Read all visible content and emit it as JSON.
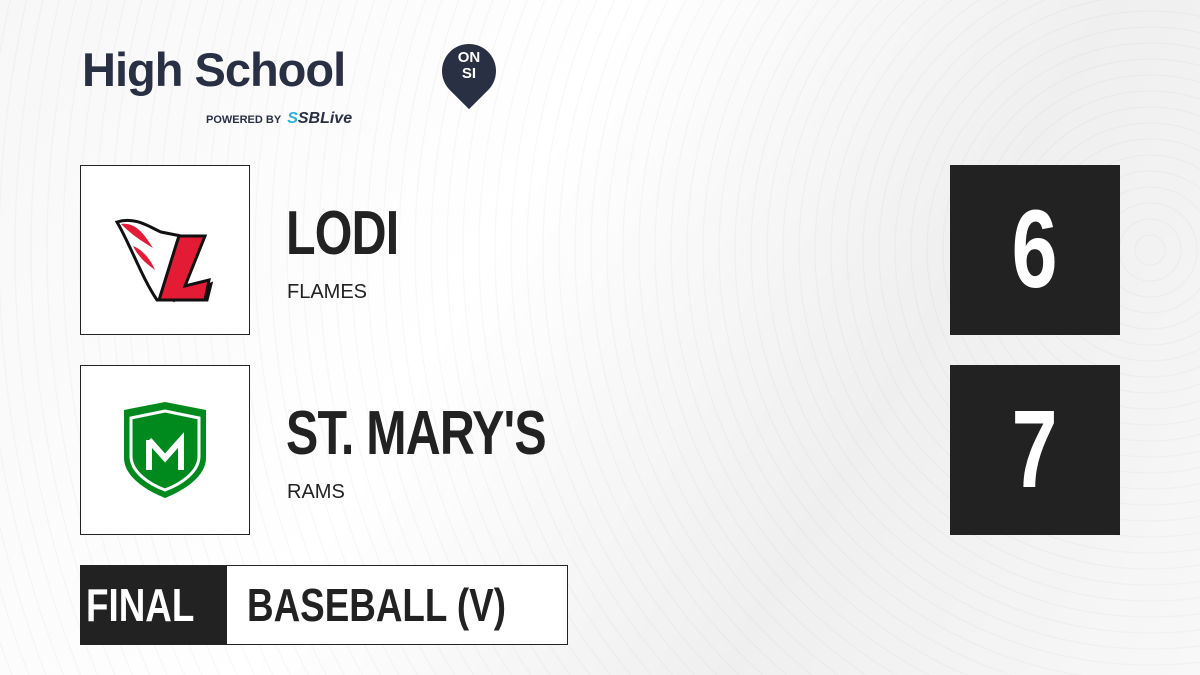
{
  "brand": {
    "title": "High School",
    "badge_top": "ON",
    "badge_bottom": "SI",
    "powered_by": "POWERED BY",
    "partner_prefix": "S",
    "partner": "SBLive"
  },
  "teams": [
    {
      "name": "LODI",
      "mascot": "FLAMES",
      "score": "6",
      "color": "#e31b35"
    },
    {
      "name": "ST. MARY'S",
      "mascot": "RAMS",
      "score": "7",
      "color": "#008a1e"
    }
  ],
  "status": "FINAL",
  "sport": "BASEBALL (V)"
}
